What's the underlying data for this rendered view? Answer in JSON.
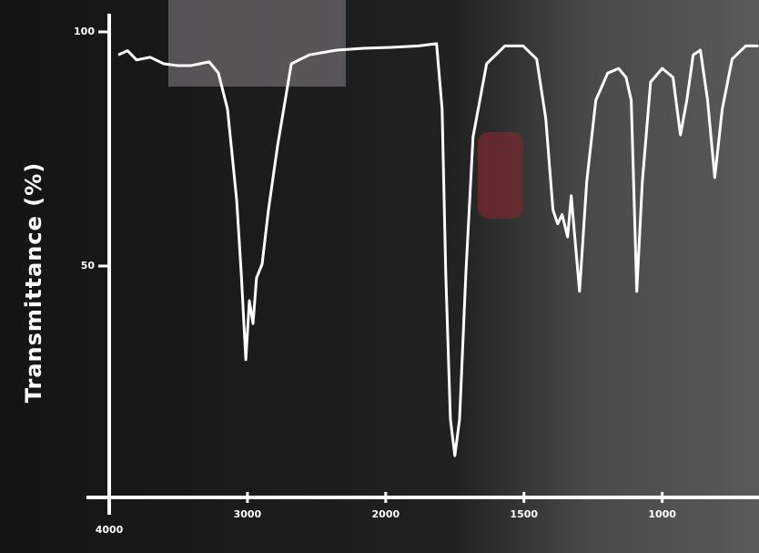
{
  "chart_data": {
    "type": "line",
    "y_label": "Transmittance (%)",
    "x": [
      3934,
      3868,
      3802,
      3704,
      3605,
      3506,
      3408,
      3276,
      3210,
      3144,
      3078,
      3045,
      3012,
      2986,
      2960,
      2934,
      2894,
      2848,
      2782,
      2683,
      2552,
      2354,
      2157,
      1980,
      1881,
      1816,
      1796,
      1783,
      1766,
      1750,
      1733,
      1710,
      1684,
      1635,
      1569,
      1503,
      1454,
      1421,
      1395,
      1378,
      1362,
      1342,
      1329,
      1316,
      1299,
      1273,
      1240,
      1197,
      1158,
      1131,
      1112,
      1092,
      1072,
      1042,
      1000,
      961,
      934,
      911,
      888,
      862,
      836,
      810,
      783,
      747,
      698,
      652
    ],
    "series": [
      {
        "color": "#ffffff",
        "values": [
          95.1,
          96,
          94,
          94.6,
          93.2,
          92.8,
          92.8,
          93.6,
          91.2,
          83.5,
          64,
          48.4,
          30,
          42.6,
          37.7,
          47.5,
          50.4,
          62,
          75.7,
          93.2,
          95.1,
          96.1,
          96.5,
          96.7,
          97,
          97.5,
          83.5,
          48.4,
          17.3,
          9.5,
          17.3,
          48.4,
          77.6,
          93.2,
          97,
          97,
          94.2,
          81.5,
          62,
          59,
          61,
          56.2,
          65,
          56.2,
          44.6,
          68,
          85.4,
          91.2,
          92.2,
          90.3,
          85.4,
          44.6,
          68,
          89.3,
          92.2,
          90.3,
          78,
          85.4,
          95.1,
          96.1,
          85.4,
          68.9,
          83.5,
          94.2,
          97,
          97
        ]
      }
    ],
    "xlim": [
      4000,
      650
    ],
    "xticks": [
      4000,
      3000,
      2000,
      1500,
      1000
    ],
    "ylim": [
      0,
      100
    ],
    "yticks": [
      50,
      100
    ]
  }
}
